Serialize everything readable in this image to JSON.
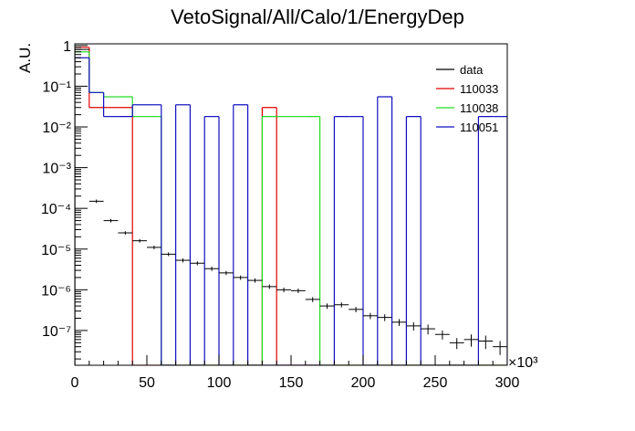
{
  "chart_data": {
    "type": "histogram",
    "title": "VetoSignal/All/Calo/1/EnergyDep",
    "ylabel": "A.U.",
    "x_multiplier": "×10³",
    "log_y": true,
    "xlim": [
      0,
      300
    ],
    "xticks": [
      0,
      50,
      100,
      150,
      200,
      250,
      300
    ],
    "ylim": [
      1.4e-08,
      1.1
    ],
    "yticks": [
      {
        "value": 1e-07,
        "label": "10⁻⁷"
      },
      {
        "value": 1e-06,
        "label": "10⁻⁶"
      },
      {
        "value": 1e-05,
        "label": "10⁻⁵"
      },
      {
        "value": 0.0001,
        "label": "10⁻⁴"
      },
      {
        "value": 0.001,
        "label": "10⁻³"
      },
      {
        "value": 0.01,
        "label": "10⁻²"
      },
      {
        "value": 0.1,
        "label": "10⁻¹"
      },
      1
    ],
    "legend_position": "upper right",
    "bins": [
      0,
      10,
      20,
      30,
      40,
      50,
      60,
      70,
      80,
      90,
      100,
      110,
      120,
      130,
      140,
      150,
      160,
      170,
      180,
      190,
      200,
      210,
      220,
      230,
      240,
      250,
      260,
      270,
      280,
      290,
      300
    ],
    "data": {
      "name": "data",
      "color": "#000000",
      "x": [
        5,
        15,
        25,
        35,
        45,
        55,
        65,
        75,
        85,
        95,
        105,
        115,
        125,
        135,
        145,
        155,
        165,
        175,
        185,
        195,
        205,
        215,
        225,
        235,
        245,
        255,
        265,
        275,
        285,
        295
      ],
      "values": [
        0.8,
        0.00015,
        5e-05,
        2.5e-05,
        1.6e-05,
        1.1e-05,
        7.5e-06,
        5.3e-06,
        4.5e-06,
        3.3e-06,
        2.6e-06,
        2e-06,
        1.7e-06,
        1.2e-06,
        1e-06,
        9.5e-07,
        5.8e-07,
        4e-07,
        4.3e-07,
        3.3e-07,
        2.3e-07,
        2.1e-07,
        1.6e-07,
        1.3e-07,
        1.1e-07,
        8e-08,
        5e-08,
        6e-08,
        5.5e-08,
        4e-08
      ],
      "errors": [
        0.01,
        1.5e-05,
        5e-06,
        2.5e-06,
        1.6e-06,
        1.1e-06,
        8e-07,
        6e-07,
        5e-07,
        4e-07,
        3e-07,
        2.5e-07,
        2e-07,
        1.5e-07,
        1.3e-07,
        1.2e-07,
        8e-08,
        6e-08,
        6e-08,
        5e-08,
        4e-08,
        4e-08,
        3e-08,
        3e-08,
        3e-08,
        2e-08,
        1.5e-08,
        2e-08,
        2e-08,
        1.5e-08
      ]
    },
    "series": [
      {
        "name": "110033",
        "color": "#e00000",
        "values": [
          0.9,
          0.03,
          0.03,
          0.03,
          0,
          0,
          0,
          0,
          0,
          0,
          0,
          0,
          0,
          0.03,
          0,
          0,
          0,
          0,
          0,
          0,
          0,
          0,
          0,
          0,
          0,
          0,
          0,
          0,
          0,
          0
        ]
      },
      {
        "name": "110038",
        "color": "#22dd22",
        "values": [
          0.7,
          0.07,
          0.055,
          0.055,
          0.018,
          0.018,
          0,
          0,
          0,
          0,
          0,
          0,
          0,
          0.018,
          0.018,
          0.018,
          0.018,
          0,
          0,
          0,
          0,
          0,
          0,
          0,
          0,
          0,
          0,
          0,
          0,
          0
        ]
      },
      {
        "name": "110051",
        "color": "#1010c0",
        "values": [
          0.5,
          0.07,
          0.018,
          0.018,
          0.035,
          0.035,
          0,
          0.035,
          0,
          0.018,
          0,
          0.035,
          0,
          0,
          0,
          0,
          0,
          0,
          0.018,
          0.018,
          0,
          0.055,
          0,
          0.018,
          0,
          0,
          0,
          0,
          0.018,
          0.018
        ]
      }
    ]
  }
}
